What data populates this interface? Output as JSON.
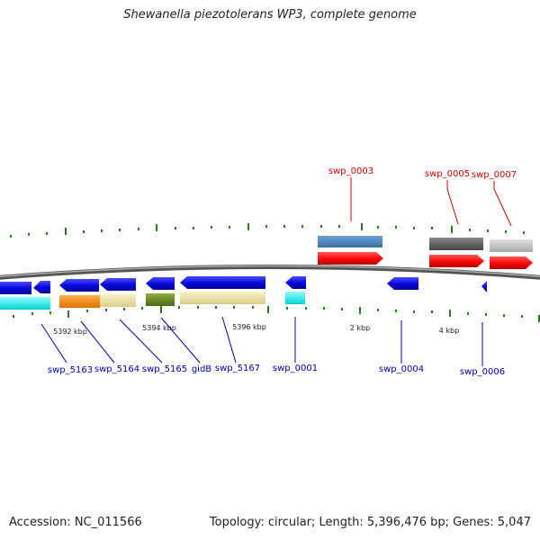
{
  "title": "Shewanella piezotolerans WP3, complete genome",
  "footer": {
    "accession": "Accession: NC_011566",
    "summary": "Topology: circular; Length: 5,396,476 bp; Genes: 5,047"
  },
  "colors": {
    "backbone": "#777777",
    "tick": "#2b7a1e",
    "gene_blue": "#0a0adc",
    "gene_red": "#ff0d0d",
    "label_red": "#d00000",
    "label_blue": "#0000b0",
    "steelblue": "#4a7fb5",
    "darkgray": "#5e5e5e",
    "lightgray": "#c6c6c6",
    "cyan": "#1ff0f0",
    "orange": "#ff8c0a",
    "khaki": "#efe6a6",
    "olive": "#6e8c26"
  },
  "scale_labels": [
    "5392 kbp",
    "5394 kbp",
    "5396 kbp",
    "2 kbp",
    "4 kbp"
  ],
  "gene_labels": {
    "top": [
      "swp_0003",
      "swp_0005",
      "swp_0007"
    ],
    "bottom": [
      "swp_5163",
      "swp_5164",
      "swp_5165",
      "gidB",
      "swp_5167",
      "swp_0001",
      "swp_0004",
      "swp_0006"
    ]
  }
}
